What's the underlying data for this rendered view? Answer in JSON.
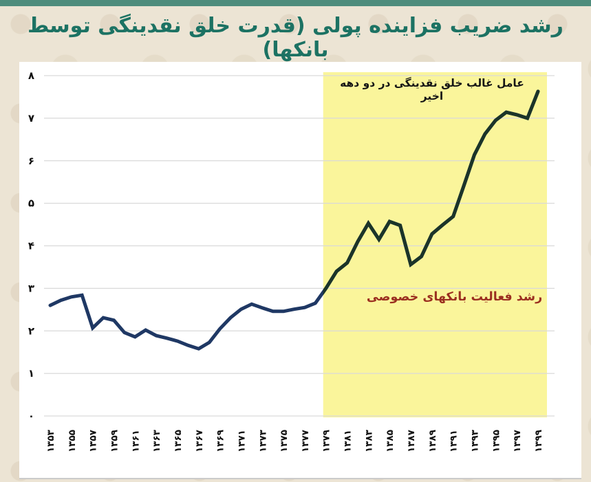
{
  "page": {
    "title": "رشد ضریب فزاینده پولی (قدرت خلق نقدینگی توسط بانکها)"
  },
  "colors": {
    "top_bar": "#4e8c7c",
    "title": "#1c7263",
    "background": "#ece4d4",
    "panel": "#ffffff",
    "gridline": "#d9d9d9",
    "line": "#1f3864",
    "line_in_band": "#1b3429",
    "highlight_band": "#faf59b",
    "tick_text": "#111111",
    "annotation_top_text": "#151515",
    "annotation_red_text": "#9b2f20",
    "bottom_divider": "#cbcbcb"
  },
  "chart_data": {
    "type": "line",
    "title": "رشد ضریب فزاینده پولی (قدرت خلق نقدینگی توسط بانکها)",
    "xlabel": "",
    "ylabel": "",
    "grid": "horizontal-only",
    "legend": "none",
    "ylim": [
      0,
      8
    ],
    "years": [
      1353,
      1354,
      1355,
      1356,
      1357,
      1358,
      1359,
      1360,
      1361,
      1362,
      1363,
      1364,
      1365,
      1366,
      1367,
      1368,
      1369,
      1370,
      1371,
      1372,
      1373,
      1374,
      1375,
      1376,
      1377,
      1378,
      1379,
      1380,
      1381,
      1382,
      1383,
      1384,
      1385,
      1386,
      1387,
      1388,
      1389,
      1390,
      1391,
      1392,
      1393,
      1394,
      1395,
      1396,
      1397,
      1398,
      1399
    ],
    "values": [
      2.6,
      2.72,
      2.8,
      2.84,
      2.07,
      2.31,
      2.25,
      1.96,
      1.86,
      2.02,
      1.89,
      1.83,
      1.76,
      1.66,
      1.58,
      1.73,
      2.05,
      2.31,
      2.51,
      2.63,
      2.54,
      2.46,
      2.46,
      2.51,
      2.55,
      2.65,
      3.0,
      3.4,
      3.6,
      4.1,
      4.53,
      4.15,
      4.57,
      4.48,
      3.56,
      3.75,
      4.28,
      4.49,
      4.69,
      5.41,
      6.14,
      6.63,
      6.95,
      7.14,
      7.08,
      7.0,
      7.63
    ],
    "x_tick_years": [
      1353,
      1355,
      1357,
      1359,
      1361,
      1363,
      1365,
      1367,
      1369,
      1371,
      1373,
      1375,
      1377,
      1379,
      1381,
      1383,
      1385,
      1387,
      1389,
      1391,
      1393,
      1395,
      1397,
      1399
    ],
    "x_tick_labels": [
      "۱۳۵۳",
      "۱۳۵۵",
      "۱۳۵۷",
      "۱۳۵۹",
      "۱۳۶۱",
      "۱۳۶۳",
      "۱۳۶۵",
      "۱۳۶۷",
      "۱۳۶۹",
      "۱۳۷۱",
      "۱۳۷۳",
      "۱۳۷۵",
      "۱۳۷۷",
      "۱۳۷۹",
      "۱۳۸۱",
      "۱۳۸۳",
      "۱۳۸۵",
      "۱۳۸۷",
      "۱۳۸۹",
      "۱۳۹۱",
      "۱۳۹۳",
      "۱۳۹۵",
      "۱۳۹۷",
      "۱۳۹۹"
    ],
    "y_ticks": [
      0,
      1,
      2,
      3,
      4,
      5,
      6,
      7,
      8
    ],
    "y_tick_labels": [
      "۰",
      "۱",
      "۲",
      "۳",
      "۴",
      "۵",
      "۶",
      "۷",
      "۸"
    ],
    "highlight_region": {
      "from_year": 1379,
      "to_year": 1399,
      "color": "#faf59b"
    },
    "annotations": [
      {
        "text": "عامل غالب خلق نقدینگی در دو دهه اخیر",
        "color": "#151515",
        "position": "top-of-highlight-band"
      },
      {
        "text": "رشد فعالیت بانکهای خصوصی",
        "color": "#9b2f20",
        "position": "middle-of-highlight-band"
      }
    ]
  }
}
